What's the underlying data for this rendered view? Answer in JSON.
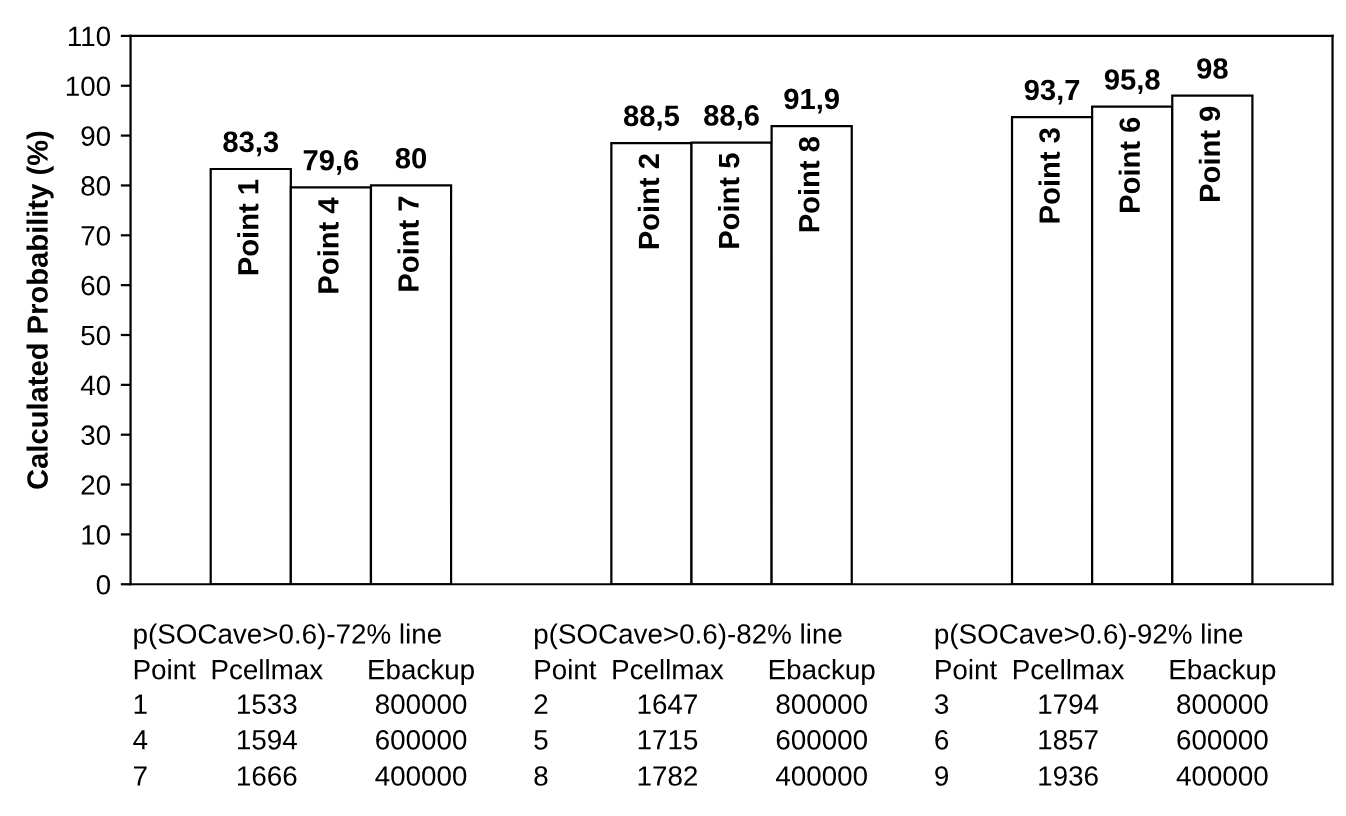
{
  "chart_data": {
    "type": "bar",
    "ylabel": "Calculated Probability (%)",
    "categories": [
      "p(SOCave>0.6)-72% line",
      "p(SOCave>0.6)-82% line",
      "p(SOCave>0.6)-92% line"
    ],
    "series": [
      {
        "color": "#ffffff",
        "values": [
          83.3,
          88.5,
          93.7
        ],
        "value_labels": [
          "83,3",
          "88,5",
          "93,7"
        ]
      },
      {
        "color": "#ffffff",
        "values": [
          79.6,
          88.6,
          95.8
        ],
        "value_labels": [
          "79,6",
          "88,6",
          "95,8"
        ]
      },
      {
        "color": "#ffffff",
        "values": [
          80,
          91.9,
          98
        ],
        "value_labels": [
          "80",
          "91,9",
          "98"
        ]
      }
    ],
    "ylim": [
      0,
      110
    ],
    "yticks": [
      0,
      10,
      20,
      30,
      40,
      50,
      60,
      70,
      80,
      90,
      100,
      110
    ],
    "grid": false,
    "legend": false,
    "tick_labels": "y",
    "annotations": [
      "Point 1",
      "Point 2",
      "Point 3",
      "Point 4",
      "Point 5",
      "Point 6",
      "Point 7",
      "Point 8",
      "Point 9",
      "Point",
      "Pcellmax",
      "Ebackup",
      "1",
      "1533",
      "800000",
      "4",
      "1594",
      "600000",
      "7",
      "1666",
      "400000",
      "Point",
      "Pcellmax",
      "Ebackup",
      "2",
      "1647",
      "800000",
      "5",
      "1715",
      "600000",
      "8",
      "1782",
      "400000",
      "Point",
      "Pcellmax",
      "Ebackup",
      "3",
      "1794",
      "800000",
      "6",
      "1857",
      "600000",
      "9",
      "1936",
      "400000"
    ]
  }
}
